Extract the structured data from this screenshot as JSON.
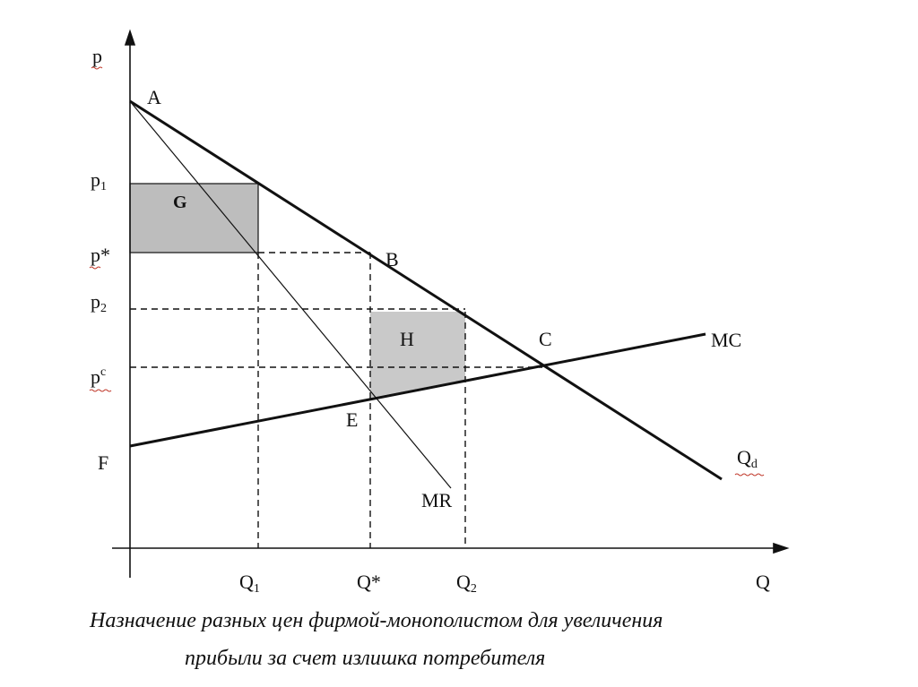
{
  "diagram": {
    "axis_labels": {
      "y": "p",
      "x": "Q"
    },
    "price_labels": {
      "p1": "p",
      "p1_sub": "1",
      "p_star": "p*",
      "p2": "p",
      "p2_sub": "2",
      "pc": "p",
      "pc_sup": "c"
    },
    "quantity_labels": {
      "q1": "Q",
      "q1_sub": "1",
      "q_star": "Q*",
      "q2": "Q",
      "q2_sub": "2"
    },
    "points": {
      "a": "A",
      "b": "B",
      "c": "C",
      "e": "E",
      "f": "F"
    },
    "curves": {
      "mc": "MC",
      "mr": "MR",
      "qd": "Q",
      "qd_sub": "d"
    },
    "areas": {
      "g": "G",
      "h": "H"
    },
    "colors": {
      "line": "#111111",
      "area_g": "#bdbdbd",
      "area_h": "#c9c9c9"
    }
  },
  "caption": {
    "line1": "Назначение разных цен фирмой-монополистом для увеличения",
    "line2": "прибыли за счет излишка потребителя"
  }
}
